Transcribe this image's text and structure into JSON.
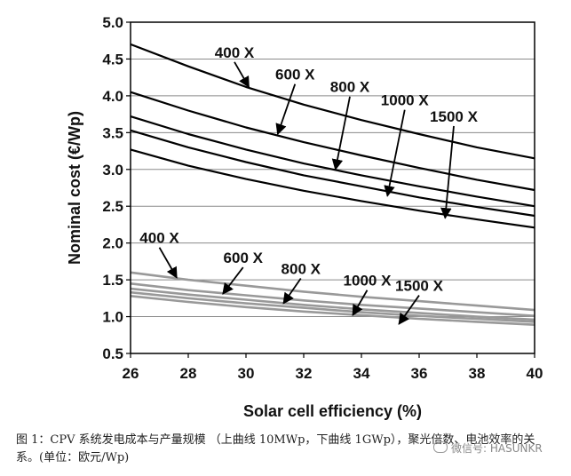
{
  "chart_data": {
    "type": "line",
    "title": "",
    "xlabel": "Solar cell efficiency (%)",
    "ylabel": "Nominal cost (€/Wp)",
    "xlim": [
      26,
      40
    ],
    "ylim": [
      0.5,
      5.0
    ],
    "xticks": [
      "26",
      "28",
      "30",
      "32",
      "34",
      "36",
      "38",
      "40"
    ],
    "yticks": [
      "0.5",
      "1.0",
      "1.5",
      "2.0",
      "2.5",
      "3.0",
      "3.5",
      "4.0",
      "4.5",
      "5.0"
    ],
    "grid": "horizontal",
    "series": [
      {
        "group": "upper",
        "color": "#000000",
        "x": [
          26,
          28,
          30,
          32,
          34,
          36,
          38,
          40
        ],
        "y": [
          4.7,
          4.4,
          4.12,
          3.88,
          3.67,
          3.48,
          3.3,
          3.15
        ]
      },
      {
        "group": "upper",
        "color": "#000000",
        "x": [
          26,
          28,
          30,
          32,
          34,
          36,
          38,
          40
        ],
        "y": [
          4.05,
          3.8,
          3.57,
          3.37,
          3.19,
          3.02,
          2.86,
          2.72
        ]
      },
      {
        "group": "upper",
        "color": "#000000",
        "x": [
          26,
          28,
          30,
          32,
          34,
          36,
          38,
          40
        ],
        "y": [
          3.72,
          3.48,
          3.27,
          3.08,
          2.92,
          2.77,
          2.63,
          2.5
        ]
      },
      {
        "group": "upper",
        "color": "#000000",
        "x": [
          26,
          28,
          30,
          32,
          34,
          36,
          38,
          40
        ],
        "y": [
          3.53,
          3.3,
          3.1,
          2.92,
          2.77,
          2.62,
          2.49,
          2.37
        ]
      },
      {
        "group": "upper",
        "color": "#000000",
        "x": [
          26,
          28,
          30,
          32,
          34,
          36,
          38,
          40
        ],
        "y": [
          3.27,
          3.05,
          2.87,
          2.71,
          2.57,
          2.44,
          2.32,
          2.21
        ]
      },
      {
        "group": "lower",
        "color": "#999999",
        "x": [
          26,
          28,
          30,
          32,
          34,
          36,
          38,
          40
        ],
        "y": [
          1.6,
          1.5,
          1.42,
          1.34,
          1.27,
          1.21,
          1.15,
          1.09
        ]
      },
      {
        "group": "lower",
        "color": "#999999",
        "x": [
          26,
          28,
          30,
          32,
          34,
          36,
          38,
          40
        ],
        "y": [
          1.45,
          1.36,
          1.29,
          1.22,
          1.16,
          1.11,
          1.06,
          1.01
        ]
      },
      {
        "group": "lower",
        "color": "#999999",
        "x": [
          26,
          28,
          30,
          32,
          34,
          36,
          38,
          40
        ],
        "y": [
          1.38,
          1.3,
          1.23,
          1.16,
          1.1,
          1.05,
          1.0,
          0.96
        ]
      },
      {
        "group": "lower",
        "color": "#999999",
        "x": [
          26,
          28,
          30,
          32,
          34,
          36,
          38,
          40
        ],
        "y": [
          1.33,
          1.25,
          1.18,
          1.12,
          1.06,
          1.01,
          0.97,
          0.93
        ]
      },
      {
        "group": "lower",
        "color": "#999999",
        "x": [
          26,
          28,
          30,
          32,
          34,
          36,
          38,
          40
        ],
        "y": [
          1.28,
          1.2,
          1.13,
          1.07,
          1.02,
          0.97,
          0.93,
          0.89
        ]
      }
    ],
    "annotations": [
      {
        "text": "400 X",
        "label_at": [
          29.6,
          4.52
        ],
        "arrow_to": [
          30.1,
          4.12
        ]
      },
      {
        "text": "600 X",
        "label_at": [
          31.7,
          4.22
        ],
        "arrow_to": [
          31.1,
          3.48
        ]
      },
      {
        "text": "800 X",
        "label_at": [
          33.6,
          4.05
        ],
        "arrow_to": [
          33.1,
          3.0
        ]
      },
      {
        "text": "1000 X",
        "label_at": [
          35.5,
          3.87
        ],
        "arrow_to": [
          34.9,
          2.64
        ]
      },
      {
        "text": "1500 X",
        "label_at": [
          37.2,
          3.65
        ],
        "arrow_to": [
          36.9,
          2.34
        ]
      },
      {
        "text": "400 X",
        "label_at": [
          27.0,
          2.0
        ],
        "arrow_to": [
          27.6,
          1.53
        ]
      },
      {
        "text": "600 X",
        "label_at": [
          29.9,
          1.73
        ],
        "arrow_to": [
          29.2,
          1.31
        ]
      },
      {
        "text": "800 X",
        "label_at": [
          31.9,
          1.58
        ],
        "arrow_to": [
          31.3,
          1.18
        ]
      },
      {
        "text": "1000 X",
        "label_at": [
          34.2,
          1.42
        ],
        "arrow_to": [
          33.7,
          1.02
        ]
      },
      {
        "text": "1500 X",
        "label_at": [
          36.0,
          1.35
        ],
        "arrow_to": [
          35.3,
          0.9
        ]
      }
    ]
  },
  "caption": "图 1：CPV 系统发电成本与产量规模 （上曲线 10MWp，下曲线 1GWp），聚光倍数、电池效率的关系。(单位：欧元/Wp)",
  "watermark": {
    "text": "微信号: HASUNKR",
    "icon": "wechat-icon"
  }
}
